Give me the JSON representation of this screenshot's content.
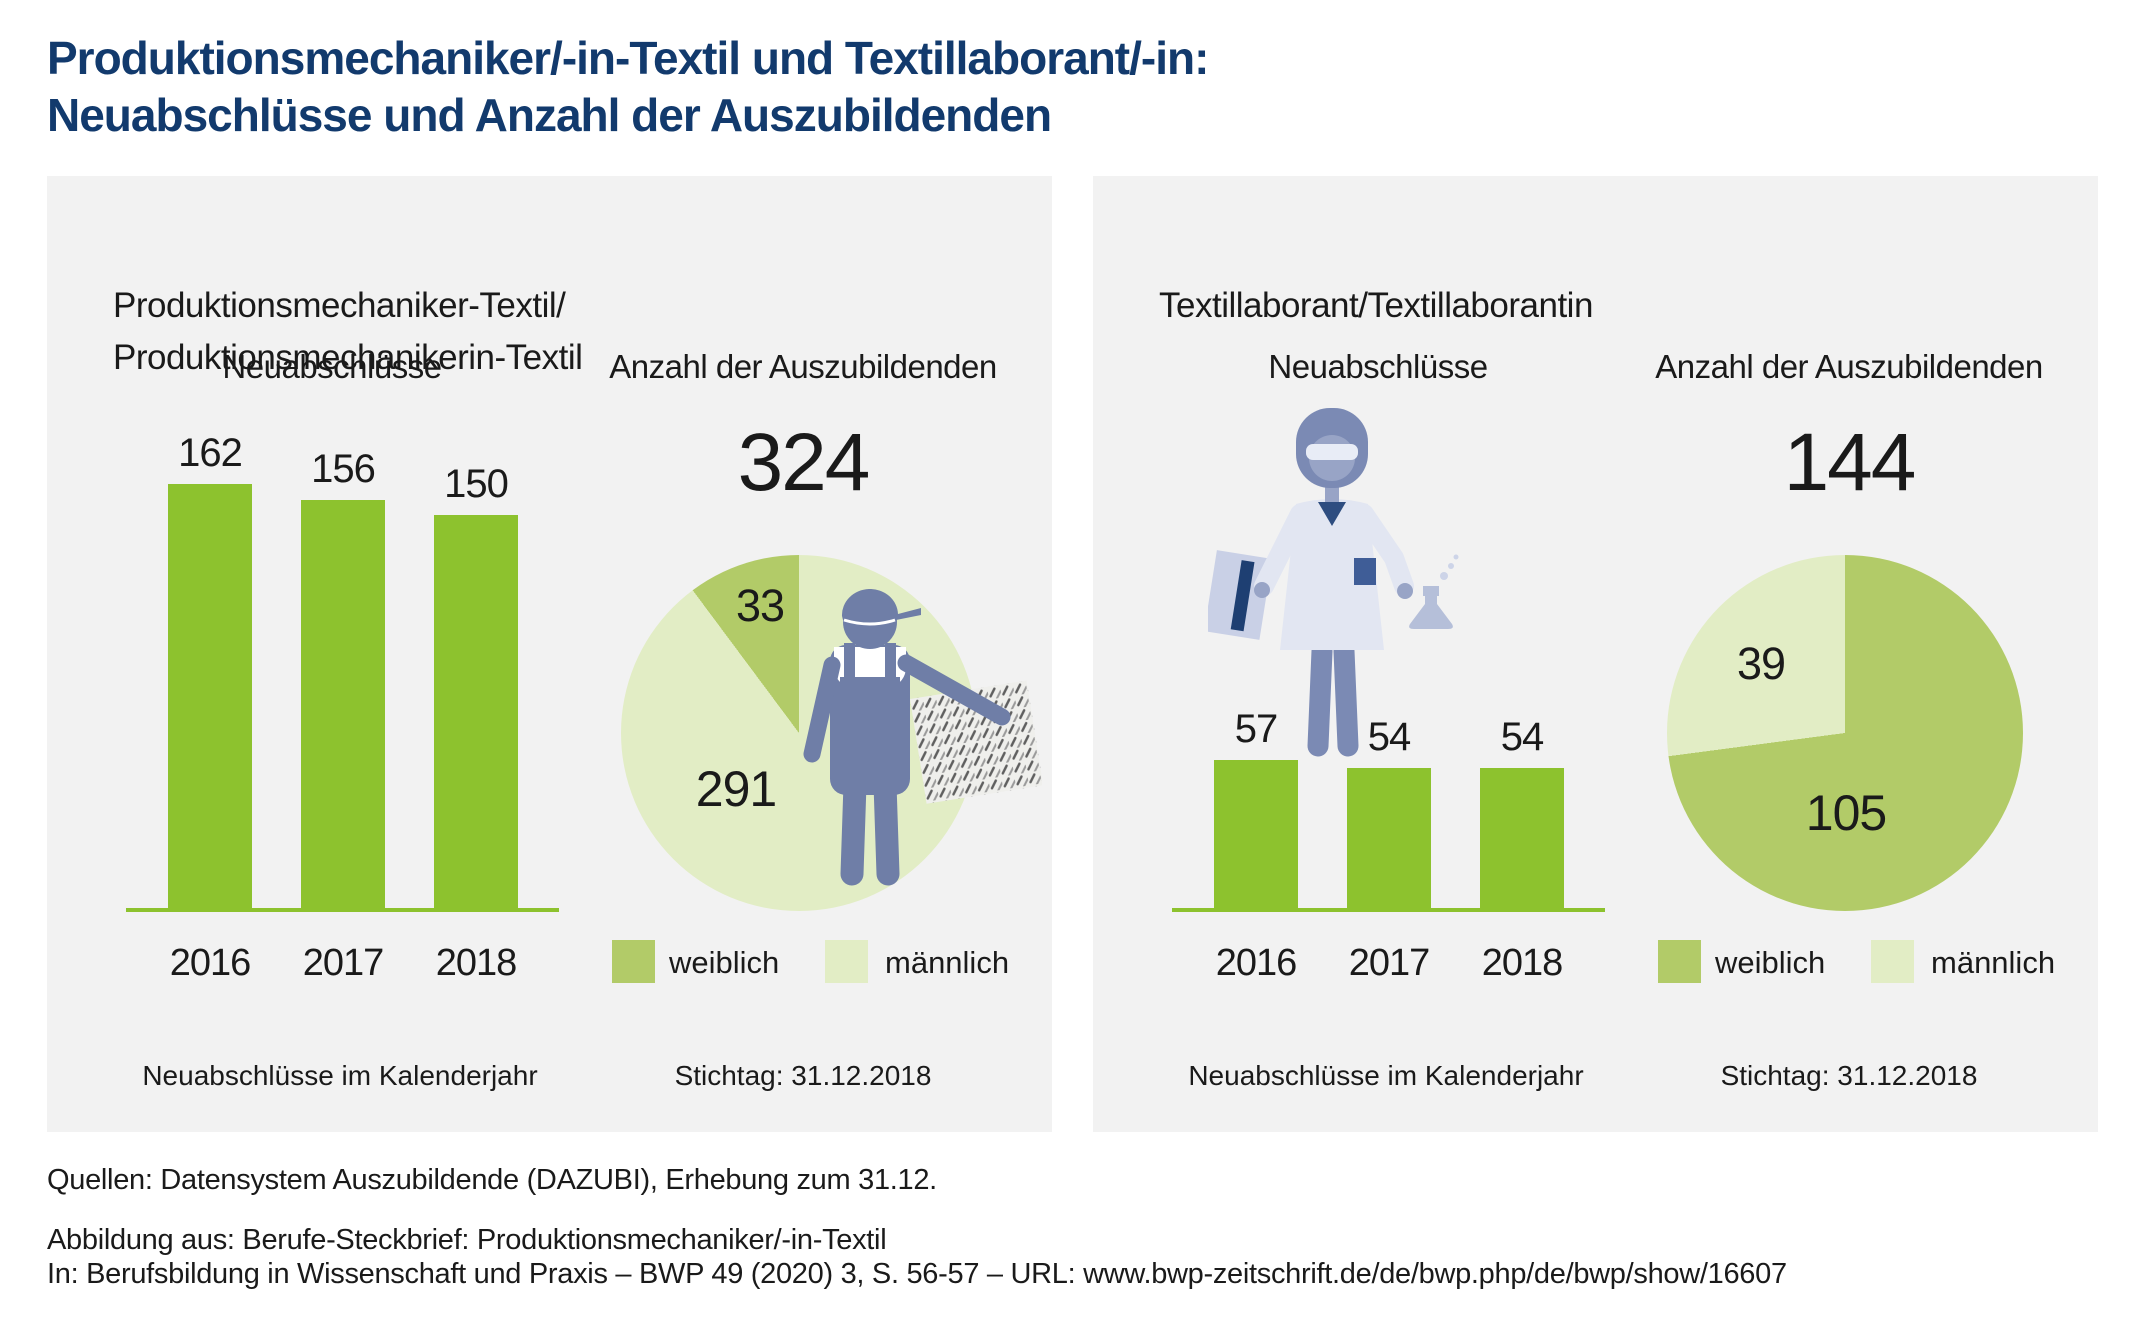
{
  "title": {
    "line1": "Produktionsmechaniker/-in-Textil und Textillaborant/-in:",
    "line2": "Neuabschlüsse und Anzahl der Auszubildenden"
  },
  "colors": {
    "navy": "#123a6d",
    "panel_bg": "#f2f2f2",
    "text_dark": "#1a1a1a",
    "bar_green": "#8dc22e",
    "female_green": "#b2cb68",
    "male_green": "#e2edc5",
    "figure_blue": "#6f7ea7",
    "lab_blue": "#7b8ab4",
    "lab_skin": "#98a4c6",
    "lab_coat": "#e2e6f2",
    "lab_navy": "#2e4d80"
  },
  "panels": [
    {
      "title_lines": [
        "Produktionsmechaniker-Textil/",
        "Produktionsmechanikerin-Textil"
      ],
      "figure_icon": "textile-worker-icon"
    },
    {
      "title_lines": [
        "Textillaborant/Textillaborantin"
      ],
      "figure_icon": "lab-technician-icon"
    }
  ],
  "chart_data": [
    {
      "type": "bar",
      "title": "Neuabschlüsse",
      "categories": [
        "2016",
        "2017",
        "2018"
      ],
      "values": [
        162,
        156,
        150
      ],
      "caption": "Neuabschlüsse im Kalenderjahr",
      "ylim": [
        0,
        180
      ],
      "grid": false
    },
    {
      "type": "pie",
      "title": "Anzahl der Auszubildenden",
      "total": 324,
      "slices": [
        {
          "label": "weiblich",
          "value": 33
        },
        {
          "label": "männlich",
          "value": 291
        }
      ],
      "caption": "Stichtag: 31.12.2018",
      "legend_position": "bottom"
    },
    {
      "type": "bar",
      "title": "Neuabschlüsse",
      "categories": [
        "2016",
        "2017",
        "2018"
      ],
      "values": [
        57,
        54,
        54
      ],
      "caption": "Neuabschlüsse im Kalenderjahr",
      "ylim": [
        0,
        180
      ],
      "grid": false
    },
    {
      "type": "pie",
      "title": "Anzahl der Auszubildenden",
      "total": 144,
      "slices": [
        {
          "label": "weiblich",
          "value": 105
        },
        {
          "label": "männlich",
          "value": 39
        }
      ],
      "caption": "Stichtag: 31.12.2018",
      "legend_position": "bottom"
    }
  ],
  "footer": {
    "sources": "Quellen: Datensystem Auszubildende (DAZUBI), Erhebung zum 31.12.",
    "attribution1": "Abbildung aus: Berufe-Steckbrief: Produktionsmechaniker/-in-Textil",
    "attribution2": "In: Berufsbildung in Wissenschaft und Praxis – BWP 49 (2020) 3, S. 56-57 – URL: www.bwp-zeitschrift.de/de/bwp.php/de/bwp/show/16607"
  }
}
